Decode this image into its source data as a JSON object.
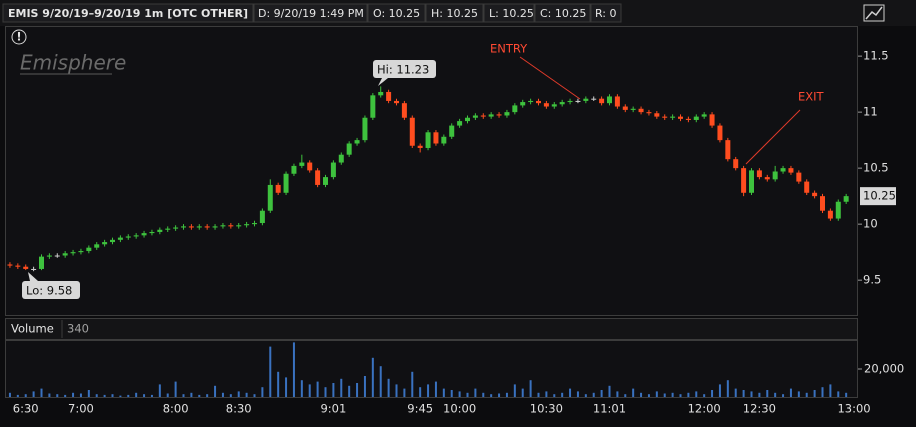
{
  "header": {
    "symbol": "EMIS 9/20/19–9/20/19 1m [OTC OTHER]",
    "date": "D: 9/20/19 1:49 PM",
    "open": "O: 10.25",
    "high": "H: 10.25",
    "low": "L: 10.25",
    "close": "C: 10.25",
    "range": "R: 0"
  },
  "chart_data": [
    {
      "type": "candlestick",
      "watermark": "Emisphere",
      "hi_label": "Hi: 11.23",
      "lo_label": "Lo: 9.58",
      "entry_label": "ENTRY",
      "exit_label": "EXIT",
      "up_color": "#3ec23e",
      "down_color": "#ff4d1f",
      "flat_color": "#d0d0d0",
      "ylim": [
        9.18,
        11.76
      ],
      "yticks": [
        9.5,
        10,
        10.5,
        11,
        11.5
      ],
      "last_price": 10.25,
      "categories": [
        null,
        null,
        "6:30",
        null,
        null,
        null,
        null,
        null,
        null,
        "7:00",
        null,
        null,
        null,
        null,
        null,
        null,
        null,
        null,
        null,
        null,
        null,
        "8:00",
        null,
        null,
        null,
        null,
        null,
        null,
        null,
        "8:30",
        null,
        null,
        null,
        null,
        null,
        null,
        null,
        null,
        null,
        null,
        null,
        "9:01",
        null,
        null,
        null,
        null,
        null,
        null,
        null,
        null,
        null,
        null,
        "9:45",
        null,
        null,
        null,
        null,
        "10:00",
        null,
        null,
        null,
        null,
        null,
        null,
        null,
        null,
        null,
        null,
        "10:30",
        null,
        null,
        null,
        null,
        null,
        null,
        null,
        "11:01",
        null,
        null,
        null,
        null,
        null,
        null,
        null,
        null,
        null,
        null,
        null,
        "12:00",
        null,
        null,
        null,
        null,
        null,
        null,
        "12:30",
        null,
        null,
        null,
        null,
        null,
        null,
        null,
        null,
        null,
        null,
        null,
        "13:00"
      ],
      "open": [
        9.64,
        9.63,
        9.62,
        9.6,
        9.6,
        9.71,
        9.72,
        9.72,
        9.74,
        9.75,
        9.76,
        9.79,
        9.82,
        9.84,
        9.86,
        9.88,
        9.89,
        9.9,
        9.92,
        9.93,
        9.95,
        9.96,
        9.97,
        9.98,
        9.97,
        9.98,
        9.97,
        9.98,
        9.99,
        9.98,
        9.99,
        10.0,
        10.01,
        10.12,
        10.35,
        10.28,
        10.45,
        10.52,
        10.55,
        10.48,
        10.35,
        10.42,
        10.55,
        10.62,
        10.72,
        10.75,
        10.95,
        11.15,
        11.18,
        11.1,
        11.08,
        10.95,
        10.7,
        10.68,
        10.82,
        10.72,
        10.78,
        10.88,
        10.92,
        10.95,
        10.97,
        10.96,
        10.98,
        10.97,
        11.0,
        11.06,
        11.09,
        11.1,
        11.08,
        11.05,
        11.07,
        11.09,
        11.1,
        11.1,
        11.12,
        11.12,
        11.08,
        11.14,
        11.05,
        11.02,
        11.03,
        11.0,
        10.99,
        10.96,
        10.95,
        10.96,
        10.94,
        10.93,
        10.96,
        10.98,
        10.88,
        10.75,
        10.58,
        10.5,
        10.28,
        10.48,
        10.42,
        10.4,
        10.47,
        10.5,
        10.46,
        10.38,
        10.28,
        10.25,
        10.12,
        10.05,
        10.2,
        null
      ],
      "high": [
        9.66,
        9.65,
        9.64,
        9.62,
        9.73,
        9.74,
        9.74,
        9.76,
        9.77,
        9.78,
        9.81,
        9.84,
        9.86,
        9.88,
        9.9,
        9.91,
        9.92,
        9.94,
        9.95,
        9.97,
        9.98,
        9.99,
        10.0,
        10.0,
        10.0,
        10.0,
        10.0,
        10.01,
        10.01,
        10.01,
        10.02,
        10.03,
        10.14,
        10.4,
        10.37,
        10.47,
        10.54,
        10.62,
        10.57,
        10.5,
        10.44,
        10.57,
        10.64,
        10.74,
        10.77,
        10.97,
        11.17,
        11.23,
        11.2,
        11.12,
        11.1,
        10.97,
        10.72,
        10.84,
        10.84,
        10.8,
        10.9,
        10.94,
        10.97,
        10.99,
        10.99,
        11.0,
        11.0,
        11.02,
        11.08,
        11.11,
        11.12,
        11.12,
        11.1,
        11.09,
        11.11,
        11.12,
        11.12,
        11.14,
        11.14,
        11.14,
        11.16,
        11.16,
        11.07,
        11.05,
        11.05,
        11.02,
        11.01,
        10.98,
        10.98,
        10.98,
        10.96,
        10.98,
        11.0,
        11.0,
        10.9,
        10.77,
        10.6,
        10.52,
        10.5,
        10.5,
        10.44,
        10.52,
        10.52,
        10.52,
        10.48,
        10.4,
        10.3,
        10.27,
        10.14,
        10.22,
        10.27,
        null
      ],
      "low": [
        9.61,
        9.6,
        9.59,
        9.58,
        9.59,
        9.69,
        9.7,
        9.7,
        9.72,
        9.73,
        9.74,
        9.77,
        9.8,
        9.82,
        9.84,
        9.86,
        9.87,
        9.88,
        9.9,
        9.91,
        9.93,
        9.94,
        9.95,
        9.95,
        9.95,
        9.95,
        9.95,
        9.96,
        9.96,
        9.96,
        9.97,
        9.98,
        9.99,
        10.1,
        10.26,
        10.26,
        10.43,
        10.5,
        10.46,
        10.33,
        10.33,
        10.4,
        10.53,
        10.6,
        10.7,
        10.73,
        10.93,
        11.13,
        11.08,
        11.06,
        10.93,
        10.68,
        10.64,
        10.66,
        10.7,
        10.7,
        10.76,
        10.86,
        10.9,
        10.93,
        10.94,
        10.94,
        10.95,
        10.95,
        10.98,
        11.04,
        11.07,
        11.06,
        11.03,
        11.03,
        11.05,
        11.07,
        11.08,
        11.08,
        11.1,
        11.06,
        11.06,
        11.03,
        11.0,
        11.0,
        10.98,
        10.97,
        10.94,
        10.93,
        10.93,
        10.92,
        10.91,
        10.91,
        10.94,
        10.86,
        10.73,
        10.56,
        10.48,
        10.25,
        10.26,
        10.4,
        10.38,
        10.38,
        10.45,
        10.44,
        10.36,
        10.26,
        10.23,
        10.1,
        10.03,
        10.03,
        10.18,
        null
      ],
      "close": [
        9.63,
        9.62,
        9.6,
        9.6,
        9.71,
        9.72,
        9.72,
        9.74,
        9.75,
        9.76,
        9.79,
        9.82,
        9.84,
        9.86,
        9.88,
        9.89,
        9.9,
        9.92,
        9.93,
        9.95,
        9.96,
        9.97,
        9.98,
        9.97,
        9.98,
        9.97,
        9.98,
        9.99,
        9.98,
        9.99,
        10.0,
        10.01,
        10.12,
        10.35,
        10.28,
        10.45,
        10.52,
        10.55,
        10.48,
        10.35,
        10.42,
        10.55,
        10.62,
        10.72,
        10.75,
        10.95,
        11.15,
        11.18,
        11.1,
        11.08,
        10.95,
        10.7,
        10.68,
        10.82,
        10.72,
        10.78,
        10.88,
        10.92,
        10.95,
        10.97,
        10.96,
        10.98,
        10.97,
        11.0,
        11.06,
        11.09,
        11.1,
        11.08,
        11.05,
        11.07,
        11.09,
        11.1,
        11.1,
        11.12,
        11.12,
        11.08,
        11.14,
        11.05,
        11.02,
        11.03,
        11.0,
        10.99,
        10.96,
        10.95,
        10.96,
        10.94,
        10.93,
        10.96,
        10.98,
        10.88,
        10.75,
        10.58,
        10.5,
        10.28,
        10.48,
        10.42,
        10.4,
        10.47,
        10.5,
        10.46,
        10.38,
        10.28,
        10.25,
        10.12,
        10.05,
        10.2,
        10.25,
        null
      ]
    },
    {
      "type": "bar",
      "title": "Volume",
      "current": 340,
      "color": "#3a72c0",
      "ylim": [
        0,
        40000
      ],
      "yticks": [
        {
          "value": 20000,
          "label": "20,000"
        }
      ],
      "values": [
        3000,
        1500,
        2000,
        4000,
        6000,
        2500,
        2000,
        1500,
        3000,
        2500,
        5000,
        2000,
        1500,
        2000,
        1000,
        1500,
        3000,
        2000,
        1500,
        9000,
        2500,
        11000,
        2000,
        3000,
        1500,
        2000,
        8000,
        3000,
        2000,
        4000,
        3000,
        2000,
        7000,
        36000,
        18000,
        14000,
        39000,
        12000,
        9000,
        11000,
        7000,
        10000,
        13000,
        8000,
        10000,
        15000,
        28000,
        22000,
        13000,
        9000,
        6000,
        18000,
        7000,
        9000,
        11000,
        6000,
        5000,
        4000,
        3000,
        6000,
        3000,
        2000,
        2500,
        3000,
        9000,
        6000,
        12000,
        3000,
        4000,
        2000,
        3000,
        6000,
        4000,
        2000,
        3000,
        5000,
        8000,
        4000,
        2000,
        6000,
        3000,
        2000,
        4000,
        2500,
        3000,
        2000,
        3000,
        4000,
        2000,
        5000,
        9000,
        12000,
        6000,
        5000,
        4000,
        3000,
        5000,
        3000,
        2000,
        6000,
        4000,
        3000,
        5000,
        7000,
        9000,
        4000,
        3000,
        null
      ]
    }
  ]
}
